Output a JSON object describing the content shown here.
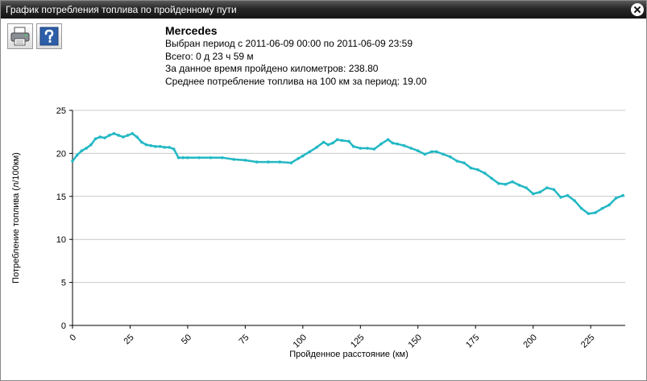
{
  "window": {
    "title": "График потребления топлива по пройденному пути",
    "close_icon": "close-icon"
  },
  "toolbar": {
    "print_icon": "printer-icon",
    "help_icon": "help-question-icon"
  },
  "info": {
    "vehicle": "Mercedes",
    "period": "Выбран период с 2011-06-09 00:00 по 2011-06-09 23:59",
    "total": "Всего: 0 д 23 ч 59 м",
    "distance": "За данное время пройдено километров: 238.80",
    "average": "Среднее потребление топлива на 100 км за период: 19.00"
  },
  "colors": {
    "line": "#22b8c4",
    "grid": "#c8c8c8",
    "titlebar": "#1e1e1e"
  },
  "chart_data": {
    "type": "line",
    "xlabel": "Пройденное расстояние (км)",
    "ylabel": "Потребление топлива (л/100км)",
    "xlim": [
      0,
      240
    ],
    "ylim": [
      0,
      25
    ],
    "x_ticks": [
      0,
      25,
      50,
      75,
      100,
      125,
      150,
      175,
      200,
      225
    ],
    "y_ticks": [
      0,
      5,
      10,
      15,
      20,
      25
    ],
    "grid": "horizontal",
    "series": [
      {
        "x": [
          0,
          2,
          4,
          6,
          8,
          10,
          12,
          14,
          16,
          18,
          20,
          22,
          24,
          26,
          28,
          30,
          32,
          34,
          36,
          38,
          40,
          42,
          44,
          46,
          48,
          50,
          55,
          60,
          65,
          70,
          75,
          80,
          85,
          90,
          95,
          98,
          100,
          103,
          106,
          109,
          111,
          113,
          115,
          117,
          120,
          122,
          125,
          128,
          131,
          134,
          137,
          139,
          141,
          144,
          147,
          150,
          153,
          156,
          158,
          161,
          164,
          167,
          170,
          173,
          176,
          179,
          182,
          185,
          188,
          191,
          194,
          197,
          200,
          203,
          206,
          209,
          212,
          215,
          218,
          221,
          224,
          227,
          230,
          233,
          236,
          239
        ],
        "values": [
          19.1,
          19.8,
          20.3,
          20.6,
          21.0,
          21.7,
          21.9,
          21.8,
          22.1,
          22.3,
          22.1,
          21.9,
          22.1,
          22.3,
          21.9,
          21.3,
          21.0,
          20.9,
          20.8,
          20.8,
          20.7,
          20.7,
          20.5,
          19.5,
          19.5,
          19.5,
          19.5,
          19.5,
          19.5,
          19.3,
          19.2,
          19.0,
          19.0,
          19.0,
          18.9,
          19.4,
          19.7,
          20.2,
          20.7,
          21.3,
          21.0,
          21.2,
          21.6,
          21.5,
          21.4,
          20.8,
          20.6,
          20.6,
          20.5,
          21.1,
          21.6,
          21.2,
          21.1,
          20.9,
          20.6,
          20.3,
          19.9,
          20.2,
          20.2,
          19.9,
          19.6,
          19.1,
          18.9,
          18.3,
          18.1,
          17.7,
          17.1,
          16.5,
          16.4,
          16.7,
          16.3,
          16.0,
          15.3,
          15.5,
          16.0,
          15.8,
          14.9,
          15.1,
          14.5,
          13.6,
          13.0,
          13.1,
          13.6,
          14.0,
          14.8,
          15.1
        ]
      }
    ]
  }
}
